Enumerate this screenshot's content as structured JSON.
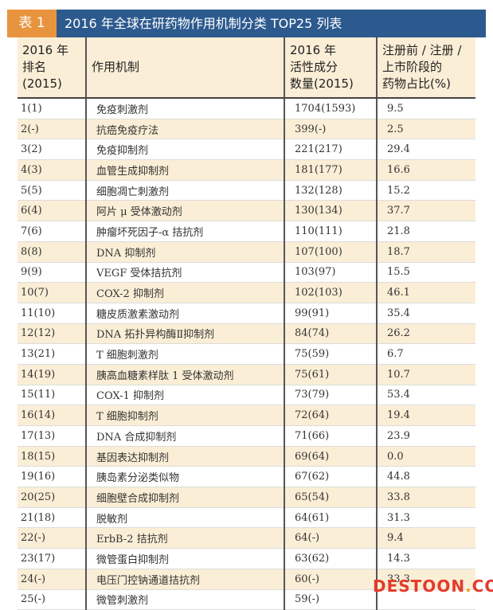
{
  "title": {
    "tag": "表 1",
    "text": "2016 年全球在研药物作用机制分类 TOP25 列表"
  },
  "colors": {
    "tag_bg": "#e8943f",
    "title_bg": "#2c5a8e",
    "stripe": "#fbeed6",
    "watermark": "#e33b2b"
  },
  "table": {
    "headers": {
      "rank_line1": "2016 年",
      "rank_line2": "排名",
      "rank_line3": "(2015)",
      "mechanism": "作用机制",
      "count_line1": "2016 年",
      "count_line2": "活性成分",
      "count_line3": "数量(2015)",
      "pct_line1": "注册前 / 注册 /",
      "pct_line2": "上市阶段的",
      "pct_line3": "药物占比(%)"
    },
    "rows": [
      {
        "rank": "1(1)",
        "mechanism": "免疫刺激剂",
        "count": "1704(1593)",
        "pct": "9.5"
      },
      {
        "rank": "2(-)",
        "mechanism": "抗癌免疫疗法",
        "count": "399(-)",
        "pct": "2.5"
      },
      {
        "rank": "3(2)",
        "mechanism": "免疫抑制剂",
        "count": "221(217)",
        "pct": "29.4"
      },
      {
        "rank": "4(3)",
        "mechanism": "血管生成抑制剂",
        "count": "181(177)",
        "pct": "16.6"
      },
      {
        "rank": "5(5)",
        "mechanism": "细胞凋亡刺激剂",
        "count": "132(128)",
        "pct": "15.2"
      },
      {
        "rank": "6(4)",
        "mechanism": "阿片 μ 受体激动剂",
        "count": "130(134)",
        "pct": "37.7"
      },
      {
        "rank": "7(6)",
        "mechanism": "肿瘤坏死因子-α 拮抗剂",
        "count": "110(111)",
        "pct": "21.8"
      },
      {
        "rank": "8(8)",
        "mechanism": "DNA 抑制剂",
        "count": "107(100)",
        "pct": "18.7"
      },
      {
        "rank": "9(9)",
        "mechanism": "VEGF 受体拮抗剂",
        "count": "103(97)",
        "pct": "15.5"
      },
      {
        "rank": "10(7)",
        "mechanism": "COX-2 抑制剂",
        "count": "102(103)",
        "pct": "46.1"
      },
      {
        "rank": "11(10)",
        "mechanism": "糖皮质激素激动剂",
        "count": "99(91)",
        "pct": "35.4"
      },
      {
        "rank": "12(12)",
        "mechanism": "DNA 拓扑异构酶Ⅱ抑制剂",
        "count": "84(74)",
        "pct": "26.2"
      },
      {
        "rank": "13(21)",
        "mechanism": "T 细胞刺激剂",
        "count": "75(59)",
        "pct": "6.7"
      },
      {
        "rank": "14(19)",
        "mechanism": "胰高血糖素样肽 1 受体激动剂",
        "count": "75(61)",
        "pct": "10.7"
      },
      {
        "rank": "15(11)",
        "mechanism": "COX-1 抑制剂",
        "count": "73(79)",
        "pct": "53.4"
      },
      {
        "rank": "16(14)",
        "mechanism": "T 细胞抑制剂",
        "count": "72(64)",
        "pct": "19.4"
      },
      {
        "rank": "17(13)",
        "mechanism": "DNA 合成抑制剂",
        "count": "71(66)",
        "pct": "23.9"
      },
      {
        "rank": "18(15)",
        "mechanism": "基因表达抑制剂",
        "count": "69(64)",
        "pct": "0.0"
      },
      {
        "rank": "19(16)",
        "mechanism": "胰岛素分泌类似物",
        "count": "67(62)",
        "pct": "44.8"
      },
      {
        "rank": "20(25)",
        "mechanism": "细胞壁合成抑制剂",
        "count": "65(54)",
        "pct": "33.8"
      },
      {
        "rank": "21(18)",
        "mechanism": "脱敏剂",
        "count": "64(61)",
        "pct": "31.3"
      },
      {
        "rank": "22(-)",
        "mechanism": "ErbB-2 拮抗剂",
        "count": "64(-)",
        "pct": "9.4"
      },
      {
        "rank": "23(17)",
        "mechanism": "微管蛋白抑制剂",
        "count": "63(62)",
        "pct": "14.3"
      },
      {
        "rank": "24(-)",
        "mechanism": "电压门控钠通道拮抗剂",
        "count": "60(-)",
        "pct": "33.3"
      },
      {
        "rank": "25(-)",
        "mechanism": "微管刺激剂",
        "count": "59(-)",
        "pct": ""
      }
    ]
  },
  "watermark": {
    "part1": "DESTOON",
    "dot": ".",
    "part2": "COM"
  }
}
